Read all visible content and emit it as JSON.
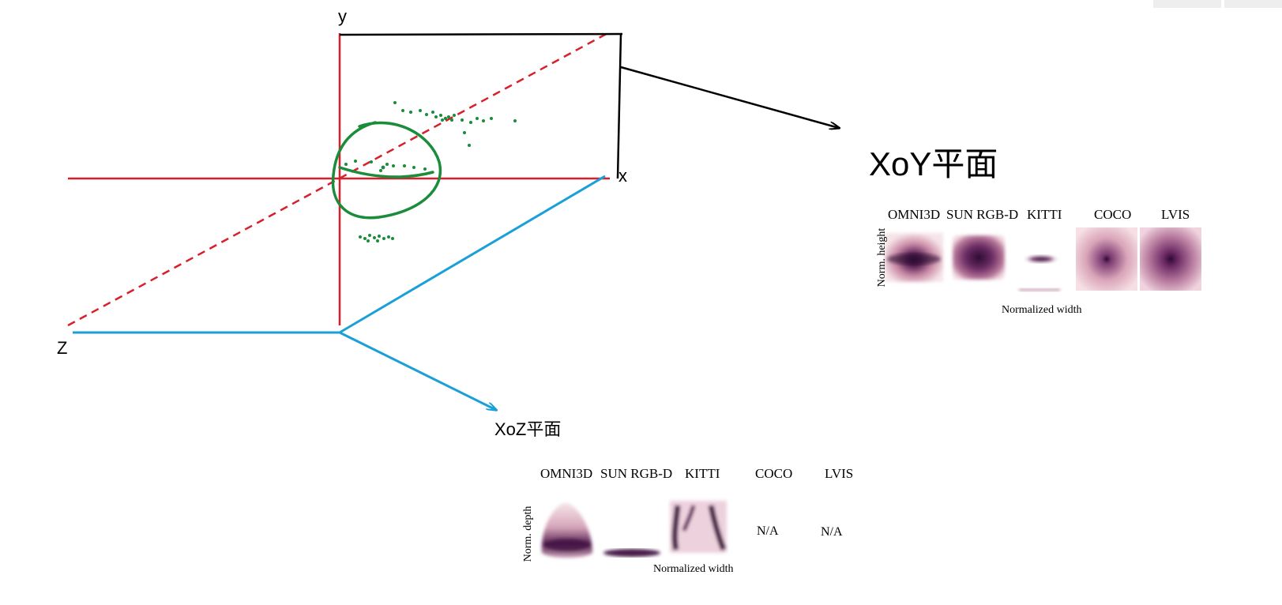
{
  "axes": {
    "x_label": "x",
    "y_label": "y",
    "z_label": "Z"
  },
  "xoy_plane": {
    "title": "XoY平面",
    "datasets": [
      "OMNI3D",
      "SUN RGB-D",
      "KITTI",
      "COCO",
      "LVIS"
    ],
    "y_axis_label": "Norm. height",
    "x_axis_label": "Normalized width"
  },
  "xoz_plane": {
    "title": "XoZ平面",
    "datasets": [
      "OMNI3D",
      "SUN RGB-D",
      "KITTI",
      "COCO",
      "LVIS"
    ],
    "y_axis_label": "Norm. depth",
    "x_axis_label": "Normalized width",
    "coco_value": "N/A",
    "lvis_value": "N/A"
  },
  "colors": {
    "axis_red": "#d7202c",
    "plane_blue": "#1aa0d8",
    "arrow_black": "#000000",
    "scribble_green": "#1a8c3a",
    "heat_dark": "#3d1240",
    "heat_mid": "#8a4a7a",
    "heat_light": "#f3dbe0"
  }
}
